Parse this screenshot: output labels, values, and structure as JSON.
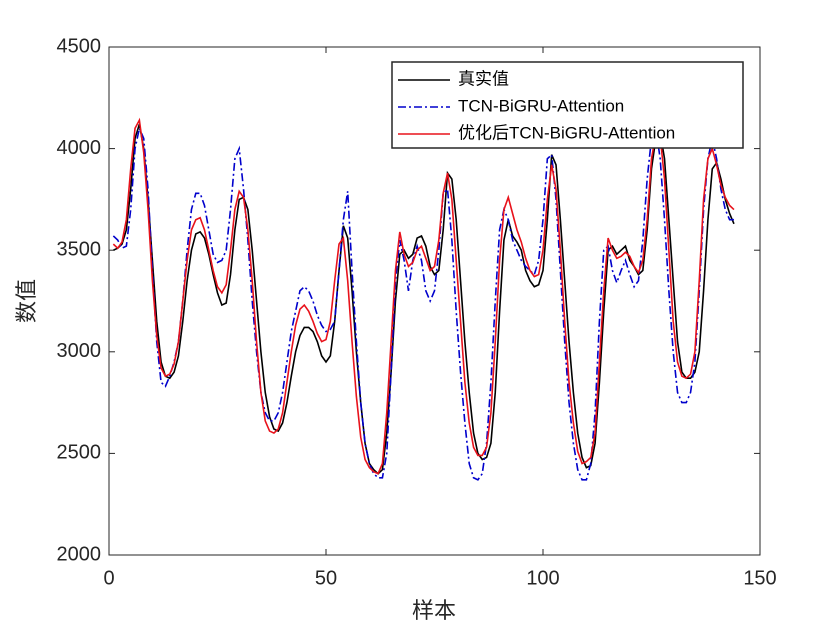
{
  "chart_data": {
    "type": "line",
    "xlabel": "样本",
    "ylabel": "数值",
    "x": [
      1,
      2,
      3,
      4,
      5,
      6,
      7,
      8,
      9,
      10,
      11,
      12,
      13,
      14,
      15,
      16,
      17,
      18,
      19,
      20,
      21,
      22,
      23,
      24,
      25,
      26,
      27,
      28,
      29,
      30,
      31,
      32,
      33,
      34,
      35,
      36,
      37,
      38,
      39,
      40,
      41,
      42,
      43,
      44,
      45,
      46,
      47,
      48,
      49,
      50,
      51,
      52,
      53,
      54,
      55,
      56,
      57,
      58,
      59,
      60,
      61,
      62,
      63,
      64,
      65,
      66,
      67,
      68,
      69,
      70,
      71,
      72,
      73,
      74,
      75,
      76,
      77,
      78,
      79,
      80,
      81,
      82,
      83,
      84,
      85,
      86,
      87,
      88,
      89,
      90,
      91,
      92,
      93,
      94,
      95,
      96,
      97,
      98,
      99,
      100,
      101,
      102,
      103,
      104,
      105,
      106,
      107,
      108,
      109,
      110,
      111,
      112,
      113,
      114,
      115,
      116,
      117,
      118,
      119,
      120,
      121,
      122,
      123,
      124,
      125,
      126,
      127,
      128,
      129,
      130,
      131,
      132,
      133,
      134,
      135,
      136,
      137,
      138,
      139,
      140,
      141,
      142,
      143,
      144
    ],
    "series": [
      {
        "name": "真实值",
        "color": "#000000",
        "dash": "solid",
        "values": [
          3500,
          3510,
          3530,
          3600,
          3800,
          4050,
          4120,
          4000,
          3750,
          3450,
          3150,
          2950,
          2880,
          2870,
          2900,
          2980,
          3150,
          3350,
          3500,
          3580,
          3590,
          3560,
          3480,
          3380,
          3290,
          3230,
          3240,
          3380,
          3600,
          3750,
          3760,
          3700,
          3500,
          3250,
          3000,
          2800,
          2680,
          2620,
          2610,
          2650,
          2750,
          2880,
          3000,
          3080,
          3120,
          3120,
          3100,
          3050,
          2980,
          2950,
          2980,
          3150,
          3400,
          3620,
          3560,
          3300,
          3000,
          2750,
          2550,
          2450,
          2420,
          2400,
          2420,
          2600,
          2900,
          3250,
          3480,
          3500,
          3460,
          3480,
          3560,
          3570,
          3520,
          3420,
          3380,
          3400,
          3600,
          3880,
          3850,
          3650,
          3350,
          3050,
          2800,
          2600,
          2500,
          2470,
          2480,
          2550,
          2800,
          3200,
          3550,
          3650,
          3570,
          3540,
          3500,
          3400,
          3350,
          3320,
          3330,
          3400,
          3650,
          3970,
          3920,
          3650,
          3350,
          3050,
          2800,
          2600,
          2480,
          2430,
          2440,
          2550,
          2850,
          3200,
          3500,
          3520,
          3480,
          3500,
          3520,
          3450,
          3420,
          3380,
          3400,
          3600,
          3900,
          4050,
          4080,
          3950,
          3650,
          3350,
          3050,
          2900,
          2870,
          2870,
          2900,
          3000,
          3300,
          3650,
          3900,
          3930,
          3850,
          3750,
          3680,
          3630
        ]
      },
      {
        "name": "TCN-BiGRU-Attention",
        "color": "#0000cc",
        "dash": "dashdot",
        "values": [
          3570,
          3550,
          3510,
          3520,
          3700,
          4000,
          4100,
          4050,
          3800,
          3400,
          3050,
          2850,
          2830,
          2880,
          2950,
          3050,
          3250,
          3500,
          3700,
          3780,
          3780,
          3720,
          3600,
          3480,
          3440,
          3450,
          3500,
          3700,
          3950,
          4000,
          3800,
          3550,
          3250,
          3000,
          2800,
          2700,
          2660,
          2660,
          2700,
          2800,
          2950,
          3100,
          3200,
          3300,
          3320,
          3300,
          3250,
          3180,
          3130,
          3100,
          3110,
          3150,
          3400,
          3650,
          3790,
          3400,
          3050,
          2750,
          2550,
          2450,
          2400,
          2380,
          2380,
          2500,
          2900,
          3350,
          3550,
          3450,
          3300,
          3450,
          3520,
          3450,
          3300,
          3250,
          3300,
          3500,
          3780,
          3800,
          3550,
          3200,
          2900,
          2650,
          2450,
          2380,
          2370,
          2400,
          2550,
          2850,
          3250,
          3600,
          3700,
          3650,
          3550,
          3500,
          3450,
          3420,
          3400,
          3380,
          3450,
          3650,
          3950,
          3970,
          3750,
          3400,
          3050,
          2750,
          2550,
          2420,
          2370,
          2370,
          2450,
          2700,
          3150,
          3500,
          3520,
          3400,
          3340,
          3400,
          3450,
          3380,
          3320,
          3350,
          3550,
          3850,
          4050,
          4100,
          3950,
          3650,
          3300,
          3000,
          2800,
          2750,
          2750,
          2800,
          2950,
          3300,
          3700,
          3950,
          4050,
          3950,
          3800,
          3700,
          3650,
          3650
        ]
      },
      {
        "name": "优化后TCN-BiGRU-Attention",
        "color": "#e8121b",
        "dash": "solid",
        "values": [
          3530,
          3510,
          3540,
          3650,
          3900,
          4100,
          4140,
          3980,
          3700,
          3350,
          3080,
          2920,
          2880,
          2890,
          2940,
          3050,
          3250,
          3450,
          3600,
          3650,
          3660,
          3600,
          3500,
          3400,
          3320,
          3290,
          3330,
          3500,
          3700,
          3790,
          3760,
          3600,
          3350,
          3050,
          2800,
          2660,
          2610,
          2600,
          2620,
          2700,
          2850,
          3000,
          3130,
          3210,
          3230,
          3200,
          3150,
          3090,
          3050,
          3060,
          3150,
          3350,
          3530,
          3560,
          3350,
          3050,
          2780,
          2580,
          2470,
          2430,
          2410,
          2400,
          2450,
          2700,
          3050,
          3400,
          3590,
          3480,
          3420,
          3440,
          3500,
          3520,
          3460,
          3400,
          3420,
          3550,
          3780,
          3880,
          3750,
          3450,
          3150,
          2850,
          2650,
          2530,
          2490,
          2490,
          2530,
          2700,
          3050,
          3450,
          3700,
          3760,
          3680,
          3600,
          3540,
          3460,
          3400,
          3370,
          3380,
          3500,
          3750,
          3920,
          3800,
          3500,
          3150,
          2850,
          2650,
          2510,
          2450,
          2460,
          2480,
          2600,
          2950,
          3300,
          3560,
          3500,
          3460,
          3470,
          3490,
          3470,
          3420,
          3390,
          3450,
          3650,
          3950,
          4070,
          4060,
          3850,
          3500,
          3150,
          2950,
          2880,
          2870,
          2890,
          3000,
          3350,
          3750,
          3950,
          4000,
          3920,
          3820,
          3760,
          3720,
          3700
        ]
      }
    ],
    "xlim": [
      0,
      150
    ],
    "xticks": [
      0,
      50,
      100,
      150
    ],
    "ylim": [
      2000,
      4500
    ],
    "yticks": [
      2000,
      2500,
      3000,
      3500,
      4000,
      4500
    ],
    "grid": false,
    "legend": "northeast"
  }
}
